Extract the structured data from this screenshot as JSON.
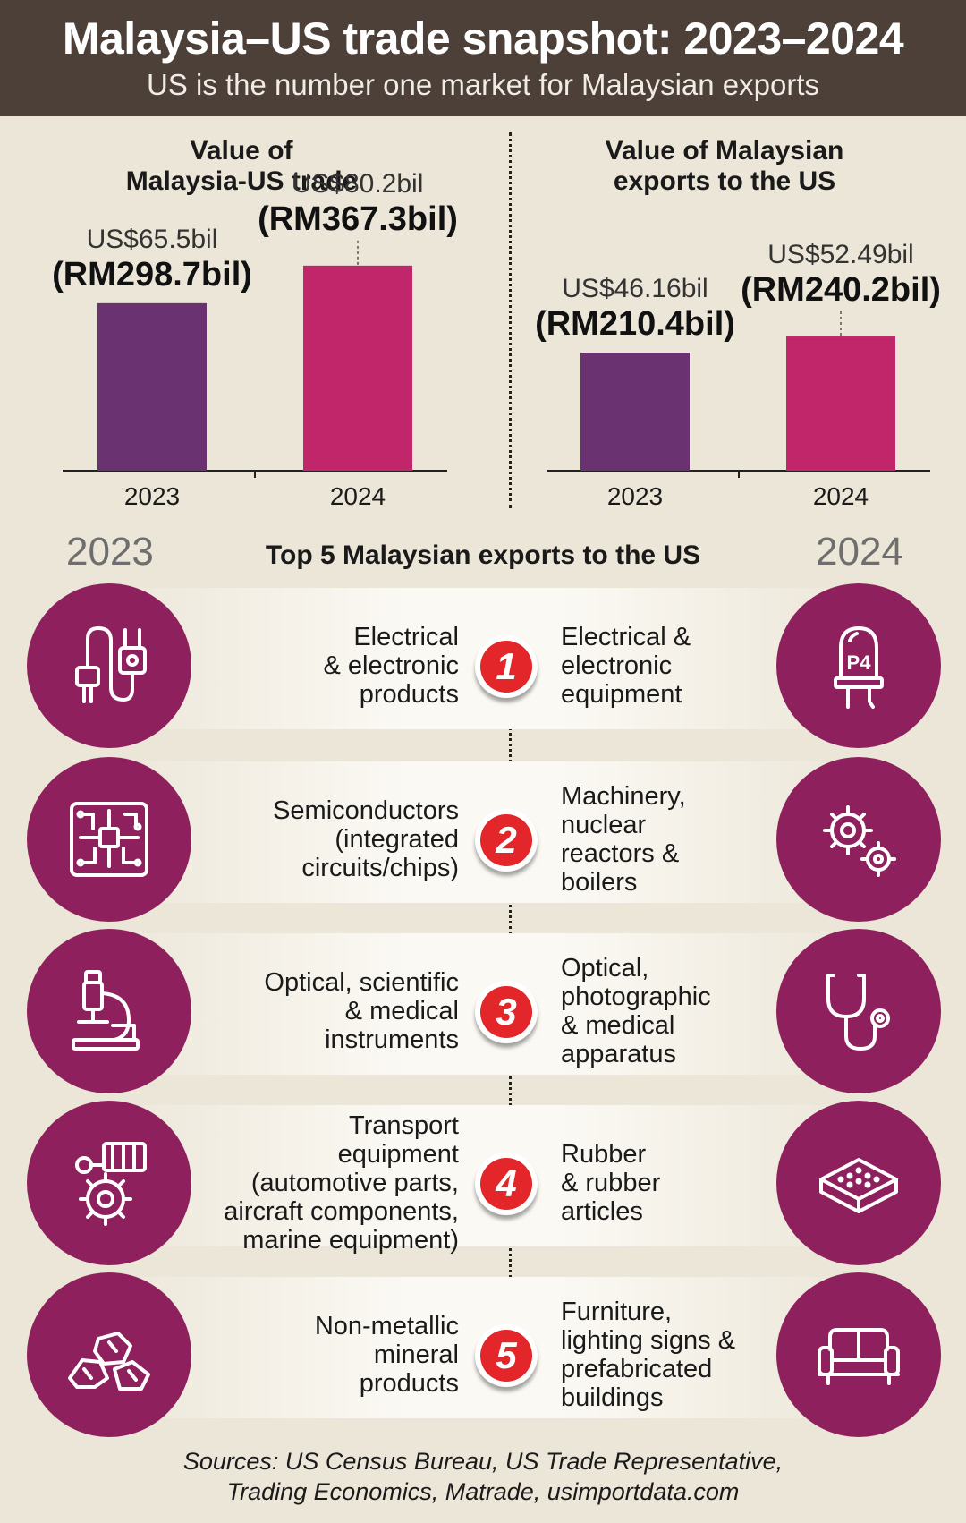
{
  "header": {
    "title": "Malaysia–US trade snapshot: 2023–2024",
    "subtitle": "US is the number one market for Malaysian exports"
  },
  "colors": {
    "bar_2023": "#6a3270",
    "bar_2024": "#c2266a",
    "icon_circle": "#8e215d",
    "rank_badge": "#e3262a",
    "header_bg": "#4c4039"
  },
  "chart_data": [
    {
      "type": "bar",
      "title_lines": [
        "Value of",
        "Malaysia-US trade"
      ],
      "categories": [
        "2023",
        "2024"
      ],
      "values": [
        65.5,
        80.2
      ],
      "labels_usd": [
        "US$65.5bil",
        "US$80.2bil"
      ],
      "labels_rm": [
        "(RM298.7bil)",
        "(RM367.3bil)"
      ],
      "ylim": [
        0,
        105
      ]
    },
    {
      "type": "bar",
      "title_lines": [
        "Value of Malaysian",
        "exports to the US"
      ],
      "categories": [
        "2023",
        "2024"
      ],
      "values": [
        46.16,
        52.49
      ],
      "labels_usd": [
        "US$46.16bil",
        "US$52.49bil"
      ],
      "labels_rm": [
        "(RM210.4bil)",
        "(RM240.2bil)"
      ],
      "ylim": [
        0,
        105
      ]
    }
  ],
  "top5": {
    "title": "Top 5 Malaysian exports to the US",
    "year_left": "2023",
    "year_right": "2024",
    "rows": [
      {
        "rank": "1",
        "left": [
          "Electrical",
          "& electronic",
          "products"
        ],
        "right": [
          "Electrical &",
          "electronic",
          "equipment"
        ],
        "icon_left": "plug-icon",
        "icon_right": "led-icon",
        "led_label": "P4"
      },
      {
        "rank": "2",
        "left": [
          "Semiconductors",
          "(integrated",
          "circuits/chips)"
        ],
        "right": [
          "Machinery,",
          "nuclear",
          "reactors &",
          "boilers"
        ],
        "icon_left": "circuit-board-icon",
        "icon_right": "gears-icon"
      },
      {
        "rank": "3",
        "left": [
          "Optical, scientific",
          "& medical",
          "instruments"
        ],
        "right": [
          "Optical,",
          "photographic",
          "& medical",
          "apparatus"
        ],
        "icon_left": "microscope-icon",
        "icon_right": "stethoscope-icon"
      },
      {
        "rank": "4",
        "left": [
          "Transport",
          "equipment",
          "(automotive parts,",
          "aircraft components,",
          "marine equipment)"
        ],
        "right": [
          "Rubber",
          "& rubber",
          "articles"
        ],
        "icon_left": "engine-parts-icon",
        "icon_right": "rubber-block-icon"
      },
      {
        "rank": "5",
        "left": [
          "Non-metallic",
          "mineral",
          "products"
        ],
        "right": [
          "Furniture,",
          "lighting signs &",
          "prefabricated",
          "buildings"
        ],
        "icon_left": "minerals-icon",
        "icon_right": "sofa-icon"
      }
    ]
  },
  "sources": [
    "Sources: US Census Bureau, US Trade Representative,",
    "Trading Economics, Matrade, usimportdata.com"
  ]
}
